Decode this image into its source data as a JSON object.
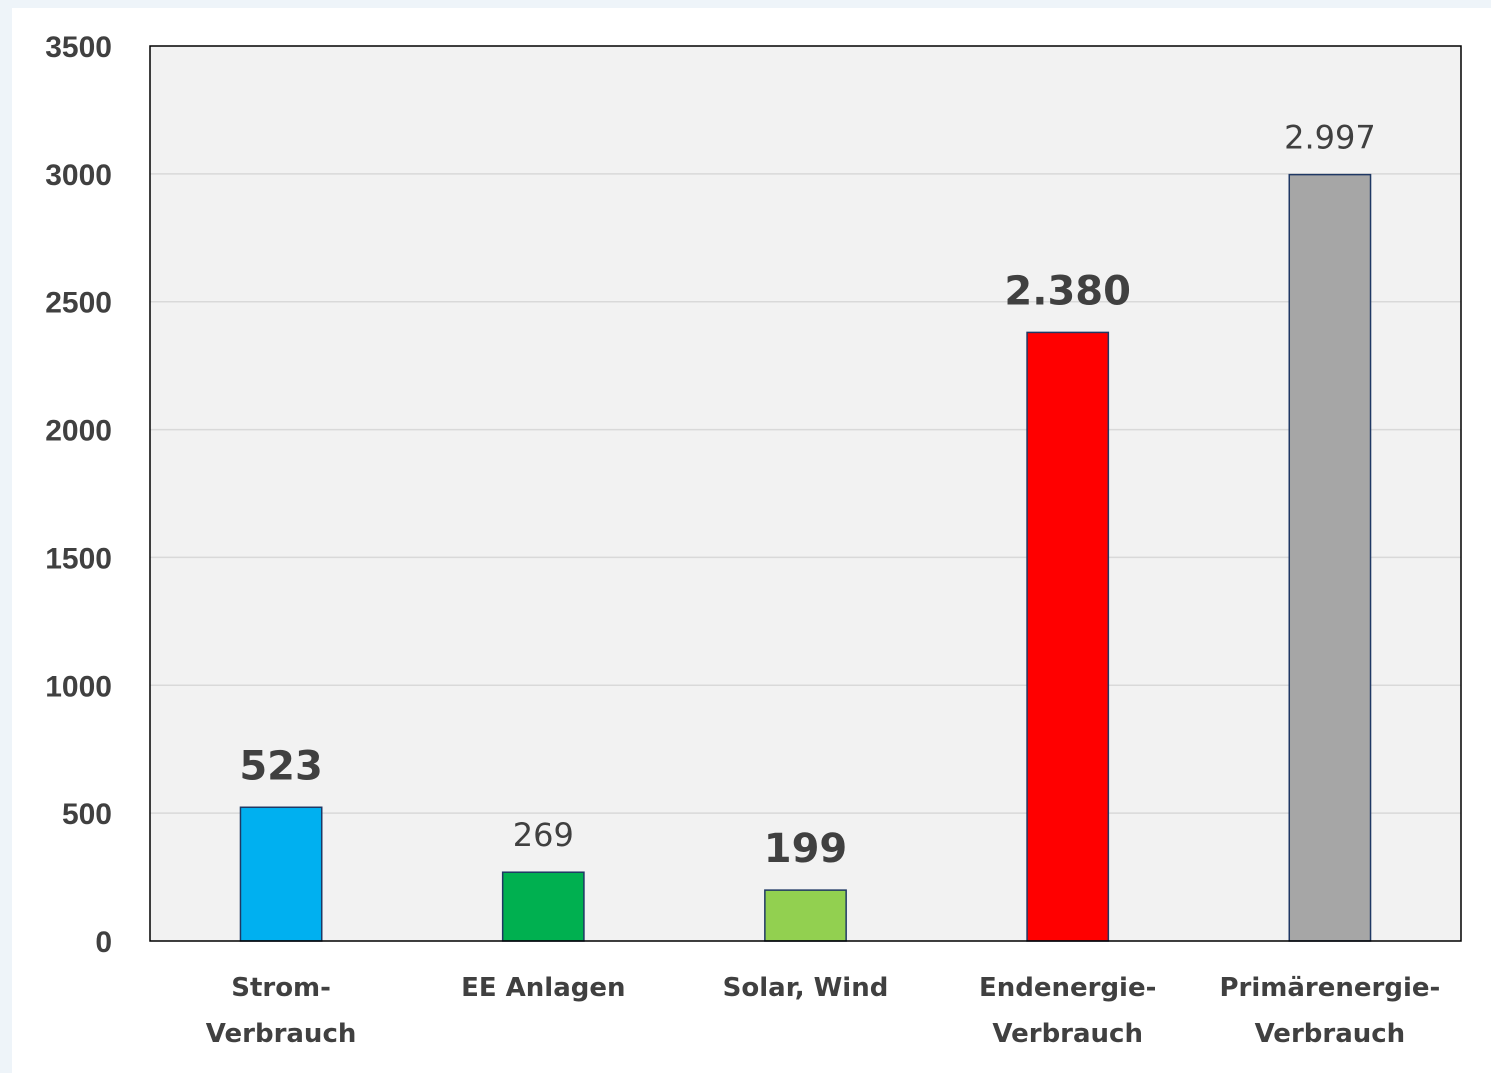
{
  "chart_data": {
    "type": "bar",
    "title": "",
    "xlabel": "",
    "ylabel": "",
    "ylim": [
      0,
      3500
    ],
    "yticks": [
      0,
      500,
      1000,
      1500,
      2000,
      2500,
      3000,
      3500
    ],
    "grid": true,
    "legend": "none",
    "plot_background": "#f2f2f2",
    "categories": [
      [
        "Strom-",
        "Verbrauch"
      ],
      [
        "EE Anlagen"
      ],
      [
        "Solar, Wind"
      ],
      [
        "Endenergie-",
        "Verbrauch"
      ],
      [
        "Primärenergie-",
        "Verbrauch"
      ]
    ],
    "values": [
      523,
      269,
      199,
      2380,
      2997
    ],
    "value_labels": [
      "523",
      "269",
      "199",
      "2.380",
      "2.997"
    ],
    "value_label_emphasis": [
      true,
      false,
      true,
      true,
      false
    ],
    "colors": [
      "#00b0f0",
      "#00b050",
      "#92d050",
      "#ff0000",
      "#a6a6a6"
    ],
    "bar_border_color": "#1f3864"
  }
}
